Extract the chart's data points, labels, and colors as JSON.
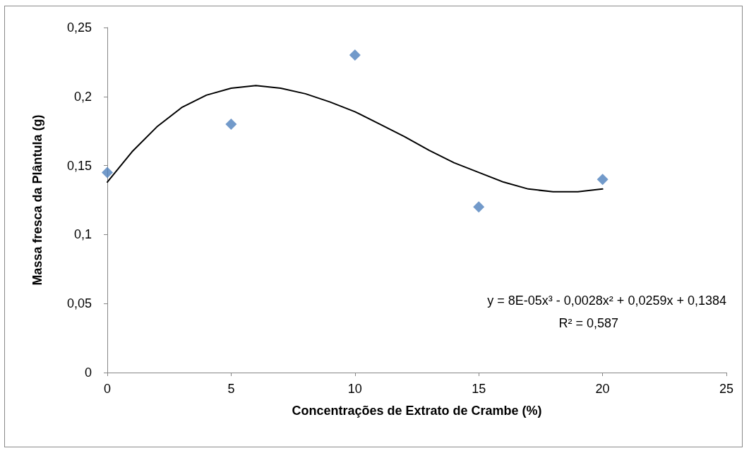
{
  "chart_data": {
    "type": "scatter",
    "xlabel": "Concentrações de Extrato de Crambe (%)",
    "ylabel": "Massa fresca da Plântula (g)",
    "series": [
      {
        "color": "#4f81bd",
        "marker": "diamond",
        "x": [
          0,
          5,
          10,
          15,
          20
        ],
        "values": [
          0.145,
          0.18,
          0.23,
          0.12,
          0.14
        ]
      },
      {
        "type": "line",
        "color": "#000000",
        "marker": "none",
        "line_style": "solid",
        "x": [
          0,
          1,
          2,
          3,
          4,
          5,
          6,
          7,
          8,
          9,
          10,
          11,
          12,
          13,
          14,
          15,
          16,
          17,
          18,
          19,
          20
        ],
        "values": [
          0.138,
          0.16,
          0.178,
          0.192,
          0.201,
          0.206,
          0.208,
          0.206,
          0.202,
          0.196,
          0.189,
          0.18,
          0.171,
          0.161,
          0.152,
          0.145,
          0.138,
          0.133,
          0.131,
          0.131,
          0.133
        ]
      }
    ],
    "xlim": [
      0,
      25
    ],
    "xticks": [
      0,
      5,
      10,
      15,
      20,
      25
    ],
    "ylim": [
      0,
      0.25
    ],
    "yticks": [
      0,
      {
        "value": 0.05,
        "label": "0,05"
      },
      {
        "value": 0.1,
        "label": "0,1"
      },
      {
        "value": 0.15,
        "label": "0,15"
      },
      {
        "value": 0.2,
        "label": "0,2"
      },
      {
        "value": 0.25,
        "label": "0,25"
      }
    ],
    "grid": false,
    "annotations": [
      "y = 8E-05x³ - 0,0028x² + 0,0259x + 0,1384",
      "R² = 0,587"
    ]
  }
}
